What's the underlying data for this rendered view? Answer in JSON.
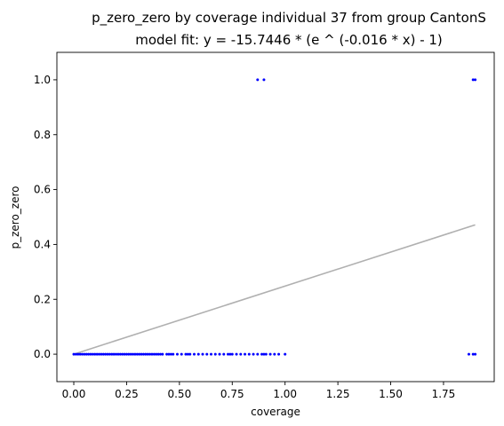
{
  "chart_data": {
    "type": "scatter",
    "title": "p_zero_zero by coverage individual 37 from group CantonS",
    "subtitle": "model fit: y = -15.7446 * (e ^ (-0.016 * x) - 1)",
    "xlabel": "coverage",
    "ylabel": "p_zero_zero",
    "xlim": [
      -0.08,
      1.99
    ],
    "ylim": [
      -0.1,
      1.1
    ],
    "xticks": [
      0.0,
      0.25,
      0.5,
      0.75,
      1.0,
      1.25,
      1.5,
      1.75
    ],
    "xtick_labels": [
      "0.00",
      "0.25",
      "0.50",
      "0.75",
      "1.00",
      "1.25",
      "1.50",
      "1.75"
    ],
    "yticks": [
      0.0,
      0.2,
      0.4,
      0.6,
      0.8,
      1.0
    ],
    "ytick_labels": [
      "0.0",
      "0.2",
      "0.4",
      "0.6",
      "0.8",
      "1.0"
    ],
    "grid": false,
    "point_color": "#0000ff",
    "fit_color": "#b0b0b0",
    "fit": {
      "a": -15.7446,
      "b": -0.016,
      "x_range": [
        0.0,
        1.9
      ]
    },
    "points": [
      {
        "x": 0.0,
        "y": 0.0
      },
      {
        "x": 0.01,
        "y": 0.0
      },
      {
        "x": 0.02,
        "y": 0.0
      },
      {
        "x": 0.03,
        "y": 0.0
      },
      {
        "x": 0.04,
        "y": 0.0
      },
      {
        "x": 0.05,
        "y": 0.0
      },
      {
        "x": 0.06,
        "y": 0.0
      },
      {
        "x": 0.07,
        "y": 0.0
      },
      {
        "x": 0.08,
        "y": 0.0
      },
      {
        "x": 0.09,
        "y": 0.0
      },
      {
        "x": 0.1,
        "y": 0.0
      },
      {
        "x": 0.11,
        "y": 0.0
      },
      {
        "x": 0.12,
        "y": 0.0
      },
      {
        "x": 0.13,
        "y": 0.0
      },
      {
        "x": 0.14,
        "y": 0.0
      },
      {
        "x": 0.15,
        "y": 0.0
      },
      {
        "x": 0.16,
        "y": 0.0
      },
      {
        "x": 0.17,
        "y": 0.0
      },
      {
        "x": 0.18,
        "y": 0.0
      },
      {
        "x": 0.19,
        "y": 0.0
      },
      {
        "x": 0.2,
        "y": 0.0
      },
      {
        "x": 0.21,
        "y": 0.0
      },
      {
        "x": 0.22,
        "y": 0.0
      },
      {
        "x": 0.23,
        "y": 0.0
      },
      {
        "x": 0.24,
        "y": 0.0
      },
      {
        "x": 0.25,
        "y": 0.0
      },
      {
        "x": 0.26,
        "y": 0.0
      },
      {
        "x": 0.27,
        "y": 0.0
      },
      {
        "x": 0.28,
        "y": 0.0
      },
      {
        "x": 0.29,
        "y": 0.0
      },
      {
        "x": 0.3,
        "y": 0.0
      },
      {
        "x": 0.31,
        "y": 0.0
      },
      {
        "x": 0.32,
        "y": 0.0
      },
      {
        "x": 0.33,
        "y": 0.0
      },
      {
        "x": 0.34,
        "y": 0.0
      },
      {
        "x": 0.35,
        "y": 0.0
      },
      {
        "x": 0.36,
        "y": 0.0
      },
      {
        "x": 0.37,
        "y": 0.0
      },
      {
        "x": 0.38,
        "y": 0.0
      },
      {
        "x": 0.39,
        "y": 0.0
      },
      {
        "x": 0.4,
        "y": 0.0
      },
      {
        "x": 0.41,
        "y": 0.0
      },
      {
        "x": 0.42,
        "y": 0.0
      },
      {
        "x": 0.44,
        "y": 0.0
      },
      {
        "x": 0.45,
        "y": 0.0
      },
      {
        "x": 0.46,
        "y": 0.0
      },
      {
        "x": 0.47,
        "y": 0.0
      },
      {
        "x": 0.49,
        "y": 0.0
      },
      {
        "x": 0.51,
        "y": 0.0
      },
      {
        "x": 0.53,
        "y": 0.0
      },
      {
        "x": 0.54,
        "y": 0.0
      },
      {
        "x": 0.55,
        "y": 0.0
      },
      {
        "x": 0.57,
        "y": 0.0
      },
      {
        "x": 0.59,
        "y": 0.0
      },
      {
        "x": 0.61,
        "y": 0.0
      },
      {
        "x": 0.63,
        "y": 0.0
      },
      {
        "x": 0.65,
        "y": 0.0
      },
      {
        "x": 0.67,
        "y": 0.0
      },
      {
        "x": 0.69,
        "y": 0.0
      },
      {
        "x": 0.71,
        "y": 0.0
      },
      {
        "x": 0.73,
        "y": 0.0
      },
      {
        "x": 0.74,
        "y": 0.0
      },
      {
        "x": 0.75,
        "y": 0.0
      },
      {
        "x": 0.77,
        "y": 0.0
      },
      {
        "x": 0.79,
        "y": 0.0
      },
      {
        "x": 0.81,
        "y": 0.0
      },
      {
        "x": 0.83,
        "y": 0.0
      },
      {
        "x": 0.85,
        "y": 0.0
      },
      {
        "x": 0.87,
        "y": 0.0
      },
      {
        "x": 0.89,
        "y": 0.0
      },
      {
        "x": 0.9,
        "y": 0.0
      },
      {
        "x": 0.91,
        "y": 0.0
      },
      {
        "x": 0.93,
        "y": 0.0
      },
      {
        "x": 0.95,
        "y": 0.0
      },
      {
        "x": 0.97,
        "y": 0.0
      },
      {
        "x": 1.0,
        "y": 0.0
      },
      {
        "x": 1.87,
        "y": 0.0
      },
      {
        "x": 1.89,
        "y": 0.0
      },
      {
        "x": 1.9,
        "y": 0.0
      },
      {
        "x": 0.87,
        "y": 1.0
      },
      {
        "x": 0.9,
        "y": 1.0
      },
      {
        "x": 1.89,
        "y": 1.0
      },
      {
        "x": 1.9,
        "y": 1.0
      }
    ]
  }
}
